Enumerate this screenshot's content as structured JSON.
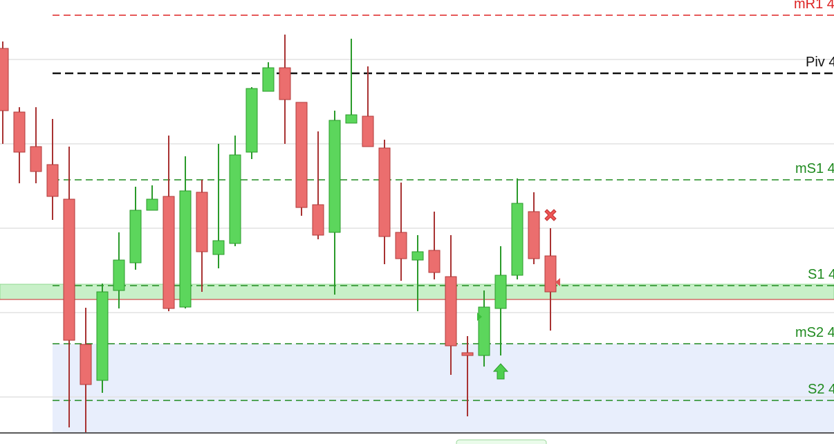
{
  "chart_data": {
    "type": "candlestick",
    "ylim": [
      0,
      642
    ],
    "categories": [
      null,
      null,
      null,
      null,
      null,
      null,
      null,
      null,
      null,
      null,
      null,
      null,
      null,
      null,
      null,
      null,
      null,
      null,
      null,
      null,
      null,
      null,
      null,
      null,
      null,
      null,
      null,
      null,
      null,
      null,
      null,
      null,
      null,
      null
    ],
    "open": [
      572,
      480,
      430,
      404,
      354,
      144,
      92,
      222,
      262,
      338,
      358,
      198,
      364,
      274,
      290,
      422,
      510,
      544,
      494,
      346,
      306,
      464,
      474,
      428,
      306,
      266,
      280,
      242,
      132,
      128,
      196,
      244,
      336,
      272
    ],
    "high": [
      582,
      487,
      487,
      470,
      430,
      197,
      232,
      306,
      372,
      374,
      446,
      416,
      382,
      434,
      446,
      516,
      552,
      592,
      494,
      452,
      482,
      586,
      546,
      440,
      378,
      302,
      336,
      302,
      156,
      222,
      286,
      384,
      364,
      312
    ],
    "low": [
      434,
      377,
      377,
      324,
      24,
      17,
      74,
      196,
      252,
      338,
      192,
      196,
      220,
      254,
      286,
      412,
      510,
      434,
      330,
      296,
      216,
      464,
      430,
      260,
      236,
      192,
      238,
      100,
      40,
      112,
      128,
      238,
      260,
      164
    ],
    "close": [
      482,
      422,
      394,
      358,
      150,
      86,
      220,
      266,
      338,
      354,
      196,
      366,
      278,
      294,
      418,
      514,
      544,
      498,
      342,
      302,
      468,
      476,
      430,
      300,
      268,
      278,
      248,
      142,
      128,
      198,
      244,
      348,
      268,
      220
    ],
    "up_color": "#5cd65c",
    "down_color": "#eb6e6e",
    "gridlines": [
      556,
      434,
      312,
      190,
      68
    ],
    "levels": [
      {
        "name": "mR1 4",
        "value": 620,
        "color": "#dd2222"
      },
      {
        "name": "Piv 4",
        "value": 536,
        "color": "#111111"
      },
      {
        "name": "mS1 4",
        "value": 382,
        "color": "#1f8a1f"
      },
      {
        "name": "S1 4",
        "value": 229,
        "color": "#1f8a1f"
      },
      {
        "name": "mS2 4",
        "value": 145,
        "color": "#1f8a1f"
      },
      {
        "name": "S2 4",
        "value": 63,
        "color": "#1f8a1f"
      }
    ],
    "zones": [
      {
        "from": 209,
        "to": 231,
        "color": "#c8f0c8"
      },
      {
        "from": 16,
        "to": 145,
        "color": "#e8eefc"
      }
    ],
    "markers": [
      {
        "kind": "sell",
        "candle": 33,
        "value": 331
      },
      {
        "kind": "buy",
        "candle": 30,
        "value": 105
      },
      {
        "kind": "right",
        "candle": 29,
        "value": 184
      },
      {
        "kind": "left",
        "candle": 33,
        "value": 234
      }
    ]
  }
}
